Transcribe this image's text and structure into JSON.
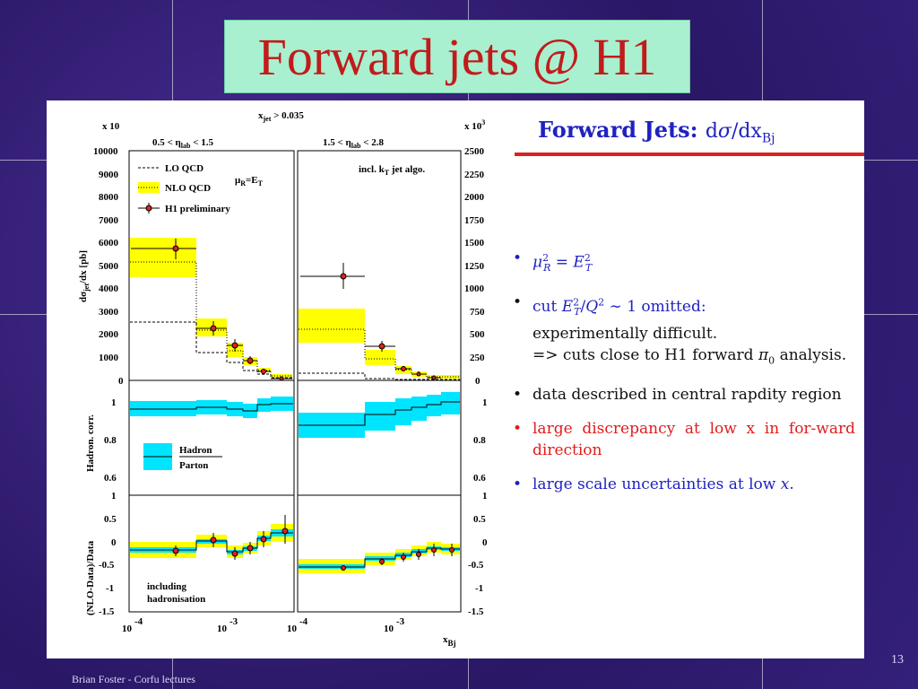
{
  "title": "Forward jets @ H1",
  "heading": {
    "label": "Forward Jets:",
    "formula": "dσ/dx_Bj"
  },
  "bullets": [
    {
      "text": "μ²_R = E²_T",
      "color": "#1f22c0"
    },
    {
      "text": "cut E²_T/Q² ∼ 1 omitted: experimentally difficult.",
      "text2": "=> cuts close to H1 forward π₀ analysis.",
      "color": "#1f22c0"
    },
    {
      "text": "data described in central rapdity region",
      "color": "#111111"
    },
    {
      "text": "large discrepancy at low x in for-ward direction",
      "color": "#e01c1c"
    },
    {
      "text": "large scale uncertainties at low x.",
      "color": "#1f22c0"
    }
  ],
  "footer": "Brian Foster - Corfu lectures",
  "page_number": "13",
  "chart_data": {
    "type": "line",
    "top_label": "x_jet > 0.035",
    "xlabel": "x_Bj",
    "panels": [
      {
        "region": "0.5 < η_lab < 1.5",
        "multiplier": "x 10",
        "ylabel": "dσ_jet/dx [pb]",
        "yticks": [
          0,
          1000,
          2000,
          3000,
          4000,
          5000,
          6000,
          7000,
          8000,
          9000,
          10000
        ],
        "legend": [
          "LO QCD",
          "NLO QCD",
          "H1 preliminary"
        ],
        "scale_label": "μ_R=E_T"
      },
      {
        "region": "1.5 < η_lab < 2.8",
        "multiplier": "x 10³",
        "yticks": [
          0,
          250,
          500,
          750,
          1000,
          1250,
          1500,
          1750,
          2000,
          2250,
          2500
        ],
        "annotation": "incl. k_T jet algo."
      },
      {
        "ylabel": "Hadron. corr.",
        "yticks": [
          0.6,
          0.8,
          1
        ],
        "legend": [
          "Hadron",
          "Parton"
        ]
      },
      {
        "ylabel": "(NLO-Data)/Data",
        "yticks": [
          -1.5,
          -1,
          -0.5,
          0,
          0.5,
          1
        ],
        "annotation": "including hadronisation"
      }
    ],
    "xticks": [
      "10⁻⁴",
      "10⁻³",
      "10⁻⁴",
      "10⁻³",
      "10"
    ]
  }
}
